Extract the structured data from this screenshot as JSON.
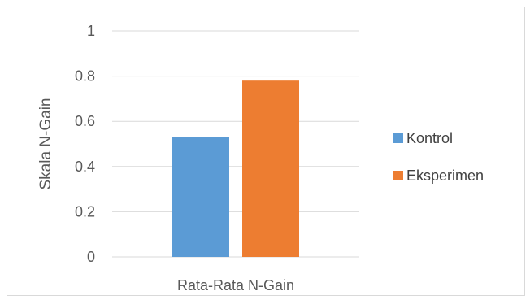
{
  "chart_data": {
    "type": "bar",
    "categories": [
      "Rata-Rata N-Gain"
    ],
    "series": [
      {
        "name": "Kontrol",
        "values": [
          0.53
        ],
        "color": "#5b9bd5"
      },
      {
        "name": "Eksperimen",
        "values": [
          0.78
        ],
        "color": "#ed7d31"
      }
    ],
    "ylabel": "Skala N-Gain",
    "xlabel": "",
    "ylim": [
      0,
      1
    ],
    "yticks": [
      "0",
      "0.2",
      "0.4",
      "0.6",
      "0.8",
      "1"
    ],
    "grid": true,
    "legend_position": "right",
    "gridline_color": "#d9d9d9"
  }
}
